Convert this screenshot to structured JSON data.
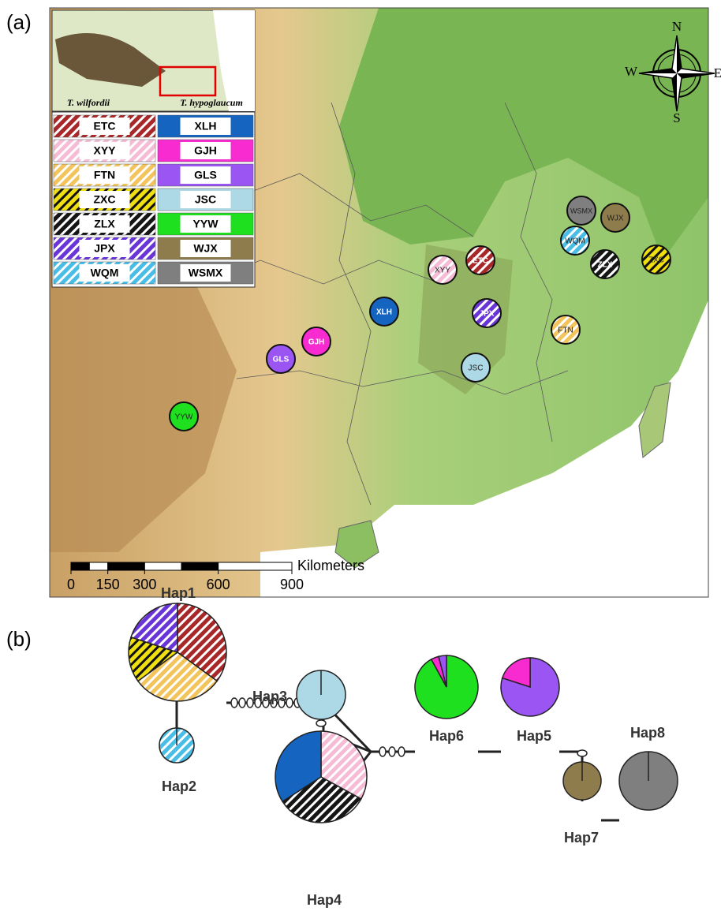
{
  "panel_a": {
    "label": "(a)",
    "inset_labels": [
      "T. wilfordii",
      "T. hypoglaucum"
    ],
    "compass": [
      "N",
      "E",
      "S",
      "W"
    ],
    "scale": {
      "unit": "Kilometers",
      "ticks": [
        0,
        150,
        300,
        600,
        900
      ]
    }
  },
  "populations": [
    {
      "code": "ETC",
      "color": "#a8282a",
      "hatch": "#ffffff"
    },
    {
      "code": "XYY",
      "color": "#f6bcd6",
      "hatch": "#ffffff"
    },
    {
      "code": "FTN",
      "color": "#f3c45c",
      "hatch": "#ffffff"
    },
    {
      "code": "ZXC",
      "color": "#f0e010",
      "hatch": "#111111"
    },
    {
      "code": "ZLX",
      "color": "#151515",
      "hatch": "#ffffff"
    },
    {
      "code": "JPX",
      "color": "#6a35d8",
      "hatch": "#ffffff"
    },
    {
      "code": "WQM",
      "color": "#48bde6",
      "hatch": "#ffffff"
    },
    {
      "code": "XLH",
      "color": "#1565c0"
    },
    {
      "code": "GJH",
      "color": "#f72bd0"
    },
    {
      "code": "GLS",
      "color": "#9a55f2"
    },
    {
      "code": "JSC",
      "color": "#add8e6"
    },
    {
      "code": "YYW",
      "color": "#1ee01e"
    },
    {
      "code": "WJX",
      "color": "#8e7c4c"
    },
    {
      "code": "WSMX",
      "color": "#7f7f7f"
    }
  ],
  "panel_b": {
    "label": "(b)",
    "haplotypes": [
      {
        "name": "Hap1",
        "segments": [
          {
            "pop": "ETC",
            "share": 35
          },
          {
            "pop": "FTN",
            "share": 30
          },
          {
            "pop": "ZXC",
            "share": 15
          },
          {
            "pop": "JPX",
            "share": 20
          }
        ]
      },
      {
        "name": "Hap2",
        "segments": [
          {
            "pop": "WQM",
            "share": 100
          }
        ]
      },
      {
        "name": "Hap3",
        "segments": [
          {
            "pop": "JSC",
            "share": 100
          }
        ]
      },
      {
        "name": "Hap4",
        "segments": [
          {
            "pop": "XYY",
            "share": 33
          },
          {
            "pop": "ZLX",
            "share": 33
          },
          {
            "pop": "XLH",
            "share": 34
          }
        ]
      },
      {
        "name": "Hap6",
        "segments": [
          {
            "pop": "YYW",
            "share": 92
          },
          {
            "pop": "GJH",
            "share": 4
          },
          {
            "pop": "GLS",
            "share": 4
          }
        ]
      },
      {
        "name": "Hap5",
        "segments": [
          {
            "pop": "GLS",
            "share": 80
          },
          {
            "pop": "GJH",
            "share": 20
          }
        ]
      },
      {
        "name": "Hap7",
        "segments": [
          {
            "pop": "WJX",
            "share": 100
          }
        ]
      },
      {
        "name": "Hap8",
        "segments": [
          {
            "pop": "WSMX",
            "share": 100
          }
        ]
      }
    ]
  }
}
